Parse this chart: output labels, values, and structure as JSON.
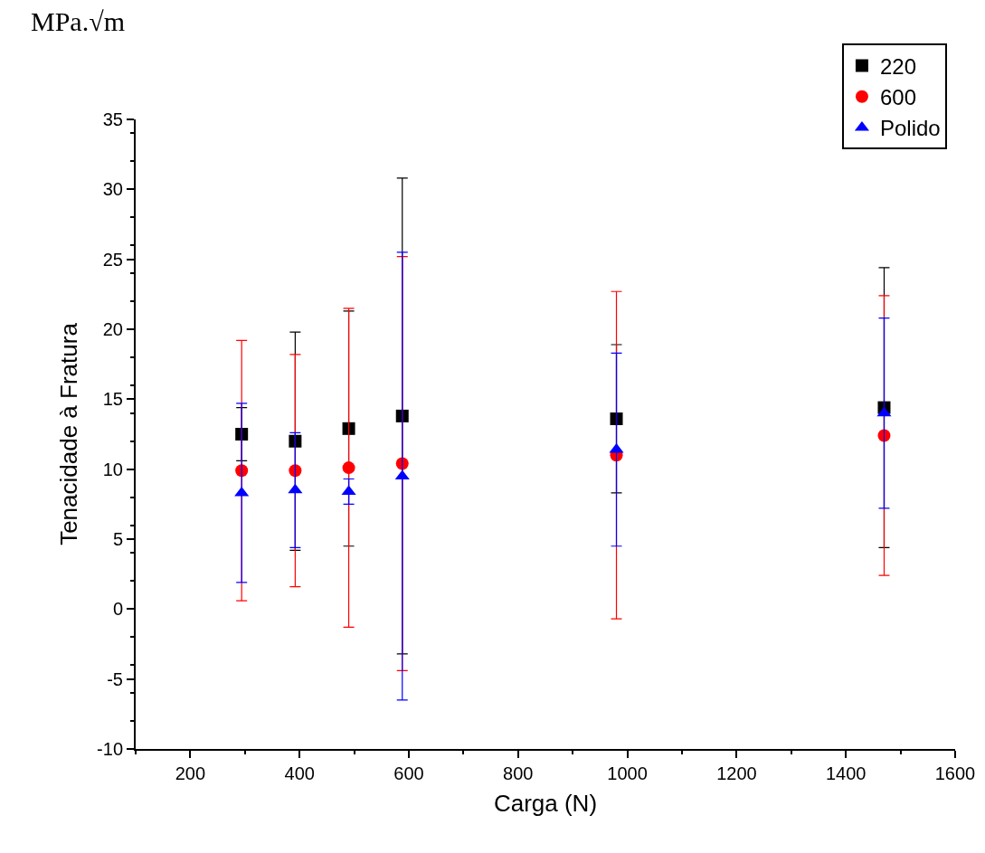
{
  "chart_data": {
    "type": "scatter",
    "xlabel": "Carga (N)",
    "ylabel": "Tenacidade à Fratura",
    "annotations": [
      "MPa.√m"
    ],
    "x": [
      294,
      392,
      490,
      588,
      980,
      1470
    ],
    "series": [
      {
        "name": "220",
        "color": "#000000",
        "marker": "square",
        "values": [
          12.5,
          12.0,
          12.9,
          13.8,
          13.6,
          14.4
        ],
        "errors": [
          1.9,
          7.8,
          8.4,
          17,
          5.3,
          10.0
        ]
      },
      {
        "name": "600",
        "color": "#ff0000",
        "marker": "circle",
        "values": [
          9.9,
          9.9,
          10.1,
          10.4,
          11.0,
          12.4
        ],
        "errors": [
          9.3,
          8.3,
          11.4,
          14.8,
          11.7,
          10.0
        ]
      },
      {
        "name": "Polido",
        "color": "#0000ff",
        "marker": "triangle",
        "values": [
          8.3,
          8.5,
          8.4,
          9.5,
          11.4,
          14.0
        ],
        "errors": [
          6.4,
          4.1,
          0.9,
          16,
          6.9,
          6.8
        ]
      }
    ],
    "xlim": [
      100,
      1600
    ],
    "xticks": [
      200,
      400,
      600,
      800,
      1000,
      1200,
      1400,
      1600
    ],
    "ylim": [
      -10,
      35
    ],
    "yticks": [
      -10,
      -5,
      0,
      5,
      10,
      15,
      20,
      25,
      30,
      35
    ],
    "grid": false,
    "legend": "top right"
  }
}
